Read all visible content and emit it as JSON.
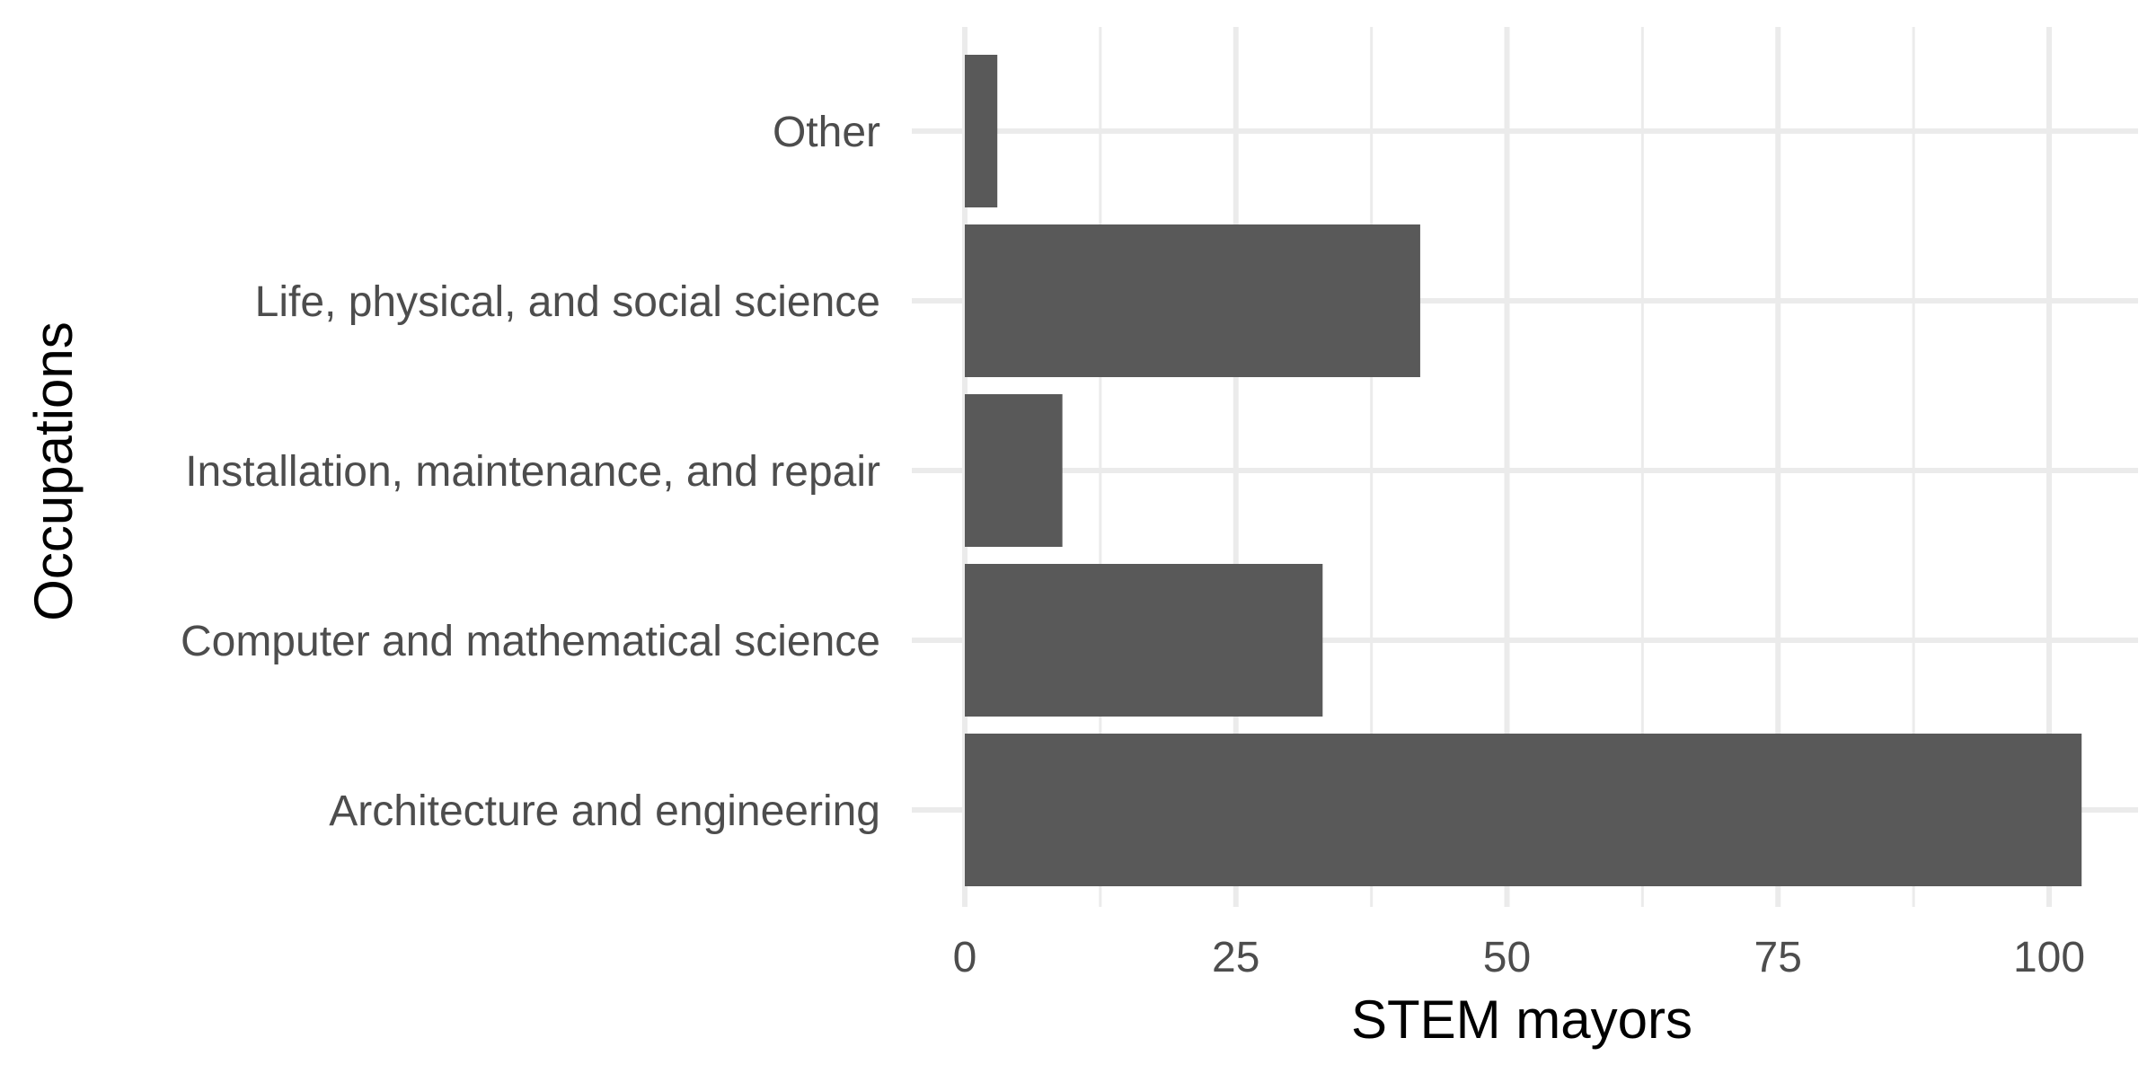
{
  "chart_data": {
    "type": "bar",
    "orientation": "horizontal",
    "categories": [
      "Architecture and engineering",
      "Computer and mathematical science",
      "Installation, maintenance, and repair",
      "Life, physical, and social science",
      "Other"
    ],
    "values": [
      103,
      33,
      9,
      42,
      3
    ],
    "xlabel": "STEM mayors",
    "ylabel": "Occupations",
    "xlim": [
      0,
      108
    ],
    "xticks": [
      0,
      25,
      50,
      75,
      100
    ],
    "xtick_labels": [
      "0",
      "25",
      "50",
      "75",
      "100"
    ],
    "grid": true,
    "bar_color": "#595959",
    "grid_color": "#ebebeb"
  }
}
